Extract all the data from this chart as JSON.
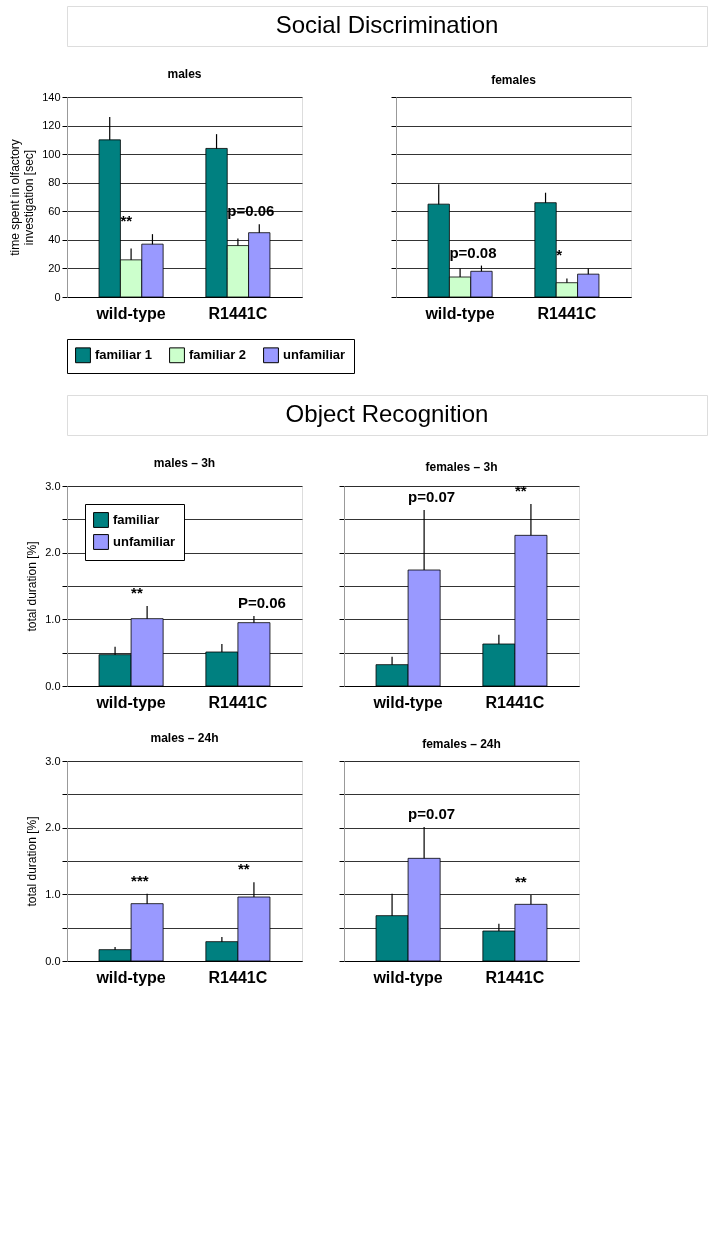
{
  "chart_data": [
    {
      "type": "other",
      "title": "Social Discrimination"
    },
    {
      "type": "bar",
      "title": "males",
      "ylabel": "time spent in olfactory investigation [sec]",
      "categories": [
        "wild-type",
        "R1441C"
      ],
      "series": [
        {
          "name": "familiar 1",
          "color": "#008080",
          "values": [
            110,
            104
          ],
          "errors": [
            16,
            10
          ]
        },
        {
          "name": "familiar 2",
          "color": "#ccffcc",
          "values": [
            26,
            36
          ],
          "errors": [
            8,
            5
          ]
        },
        {
          "name": "unfamiliar",
          "color": "#9999ff",
          "values": [
            37,
            45
          ],
          "errors": [
            7,
            6
          ]
        }
      ],
      "ylim": [
        0,
        140
      ],
      "yticks": [
        0,
        20,
        40,
        60,
        80,
        100,
        120,
        140
      ],
      "grid": "y",
      "legend": "bottom",
      "annotations": [
        "**",
        "p=0.06"
      ]
    },
    {
      "type": "bar",
      "title": "females",
      "categories": [
        "wild-type",
        "R1441C"
      ],
      "series": [
        {
          "color": "#008080",
          "values": [
            65,
            66
          ],
          "errors": [
            14,
            7
          ]
        },
        {
          "color": "#ccffcc",
          "values": [
            14,
            10
          ],
          "errors": [
            6,
            3
          ]
        },
        {
          "color": "#9999ff",
          "values": [
            18,
            16
          ],
          "errors": [
            4,
            4
          ]
        }
      ],
      "ylim": [
        0,
        140
      ],
      "yticks": [
        0,
        20,
        40,
        60,
        80,
        100,
        120,
        140
      ],
      "grid": "y",
      "tick_labels": "x",
      "annotations": [
        "p=0.08",
        "*"
      ]
    },
    {
      "type": "other",
      "title": "Object Recognition"
    },
    {
      "type": "bar",
      "title": "males – 3h",
      "ylabel": "total duration [%]",
      "categories": [
        "wild-type",
        "R1441C"
      ],
      "series": [
        {
          "name": "familiar",
          "color": "#008080",
          "values": [
            0.47,
            0.51
          ],
          "errors": [
            0.12,
            0.12
          ]
        },
        {
          "name": "unfamiliar",
          "color": "#9999ff",
          "values": [
            1.01,
            0.95
          ],
          "errors": [
            0.19,
            0.1
          ]
        }
      ],
      "ylim": [
        0,
        3
      ],
      "yticks": [
        {
          "value": 0,
          "label": "0.0"
        },
        {
          "value": 0.5,
          "label": null
        },
        {
          "value": 1,
          "label": "1.0"
        },
        {
          "value": 1.5,
          "label": null
        },
        {
          "value": 2,
          "label": "2.0"
        },
        {
          "value": 2.5,
          "label": null
        },
        {
          "value": 3,
          "label": "3.0"
        }
      ],
      "grid": "y",
      "legend": "top left",
      "annotations": [
        "**",
        "P=0.06"
      ]
    },
    {
      "type": "bar",
      "title": "females – 3h",
      "categories": [
        "wild-type",
        "R1441C"
      ],
      "series": [
        {
          "color": "#008080",
          "values": [
            0.32,
            0.63
          ],
          "errors": [
            0.12,
            0.14
          ]
        },
        {
          "color": "#9999ff",
          "values": [
            1.74,
            2.26
          ],
          "errors": [
            0.9,
            0.47
          ]
        }
      ],
      "ylim": [
        0,
        3
      ],
      "yticks": [
        0,
        0.5,
        1,
        1.5,
        2,
        2.5,
        3
      ],
      "grid": "y",
      "tick_labels": "x",
      "annotations": [
        "p=0.07",
        "**"
      ]
    },
    {
      "type": "bar",
      "title": "males – 24h",
      "ylabel": "total duration [%]",
      "categories": [
        "wild-type",
        "R1441C"
      ],
      "series": [
        {
          "color": "#008080",
          "values": [
            0.17,
            0.29
          ],
          "errors": [
            0.04,
            0.07
          ]
        },
        {
          "color": "#9999ff",
          "values": [
            0.86,
            0.96
          ],
          "errors": [
            0.15,
            0.22
          ]
        }
      ],
      "ylim": [
        0,
        3
      ],
      "yticks": [
        {
          "value": 0,
          "label": "0.0"
        },
        {
          "value": 0.5,
          "label": null
        },
        {
          "value": 1,
          "label": "1.0"
        },
        {
          "value": 1.5,
          "label": null
        },
        {
          "value": 2,
          "label": "2.0"
        },
        {
          "value": 2.5,
          "label": null
        },
        {
          "value": 3,
          "label": "3.0"
        }
      ],
      "grid": "y",
      "annotations": [
        "***",
        "**"
      ]
    },
    {
      "type": "bar",
      "title": "females – 24h",
      "categories": [
        "wild-type",
        "R1441C"
      ],
      "series": [
        {
          "color": "#008080",
          "values": [
            0.68,
            0.45
          ],
          "errors": [
            0.33,
            0.11
          ]
        },
        {
          "color": "#9999ff",
          "values": [
            1.54,
            0.85
          ],
          "errors": [
            0.47,
            0.14
          ]
        }
      ],
      "ylim": [
        0,
        3
      ],
      "yticks": [
        0,
        0.5,
        1,
        1.5,
        2,
        2.5,
        3
      ],
      "grid": "y",
      "tick_labels": "x",
      "annotations": [
        "p=0.07",
        "**"
      ]
    }
  ]
}
